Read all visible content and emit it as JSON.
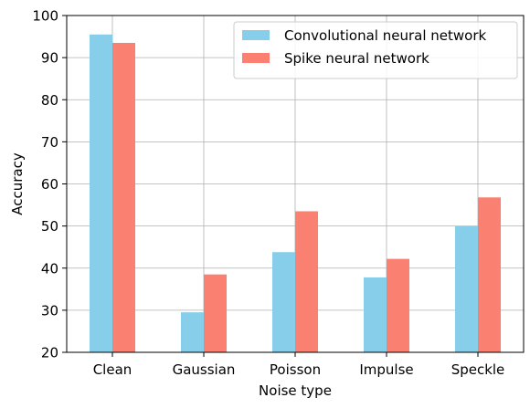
{
  "chart_data": {
    "type": "bar",
    "title": "",
    "xlabel": "Noise type",
    "ylabel": "Accuracy",
    "ylim": [
      20,
      100
    ],
    "yticks": [
      20,
      30,
      40,
      50,
      60,
      70,
      80,
      90,
      100
    ],
    "grid": true,
    "legend_position": "upper-right",
    "categories": [
      "Clean",
      "Gaussian",
      "Poisson",
      "Impulse",
      "Speckle"
    ],
    "series": [
      {
        "name": "Convolutional neural network",
        "color": "#87ceeb",
        "values": [
          95.5,
          29.5,
          43.8,
          37.8,
          50.0
        ]
      },
      {
        "name": "Spike neural network",
        "color": "#fa8072",
        "values": [
          93.5,
          38.5,
          53.5,
          42.2,
          56.8
        ]
      }
    ]
  }
}
